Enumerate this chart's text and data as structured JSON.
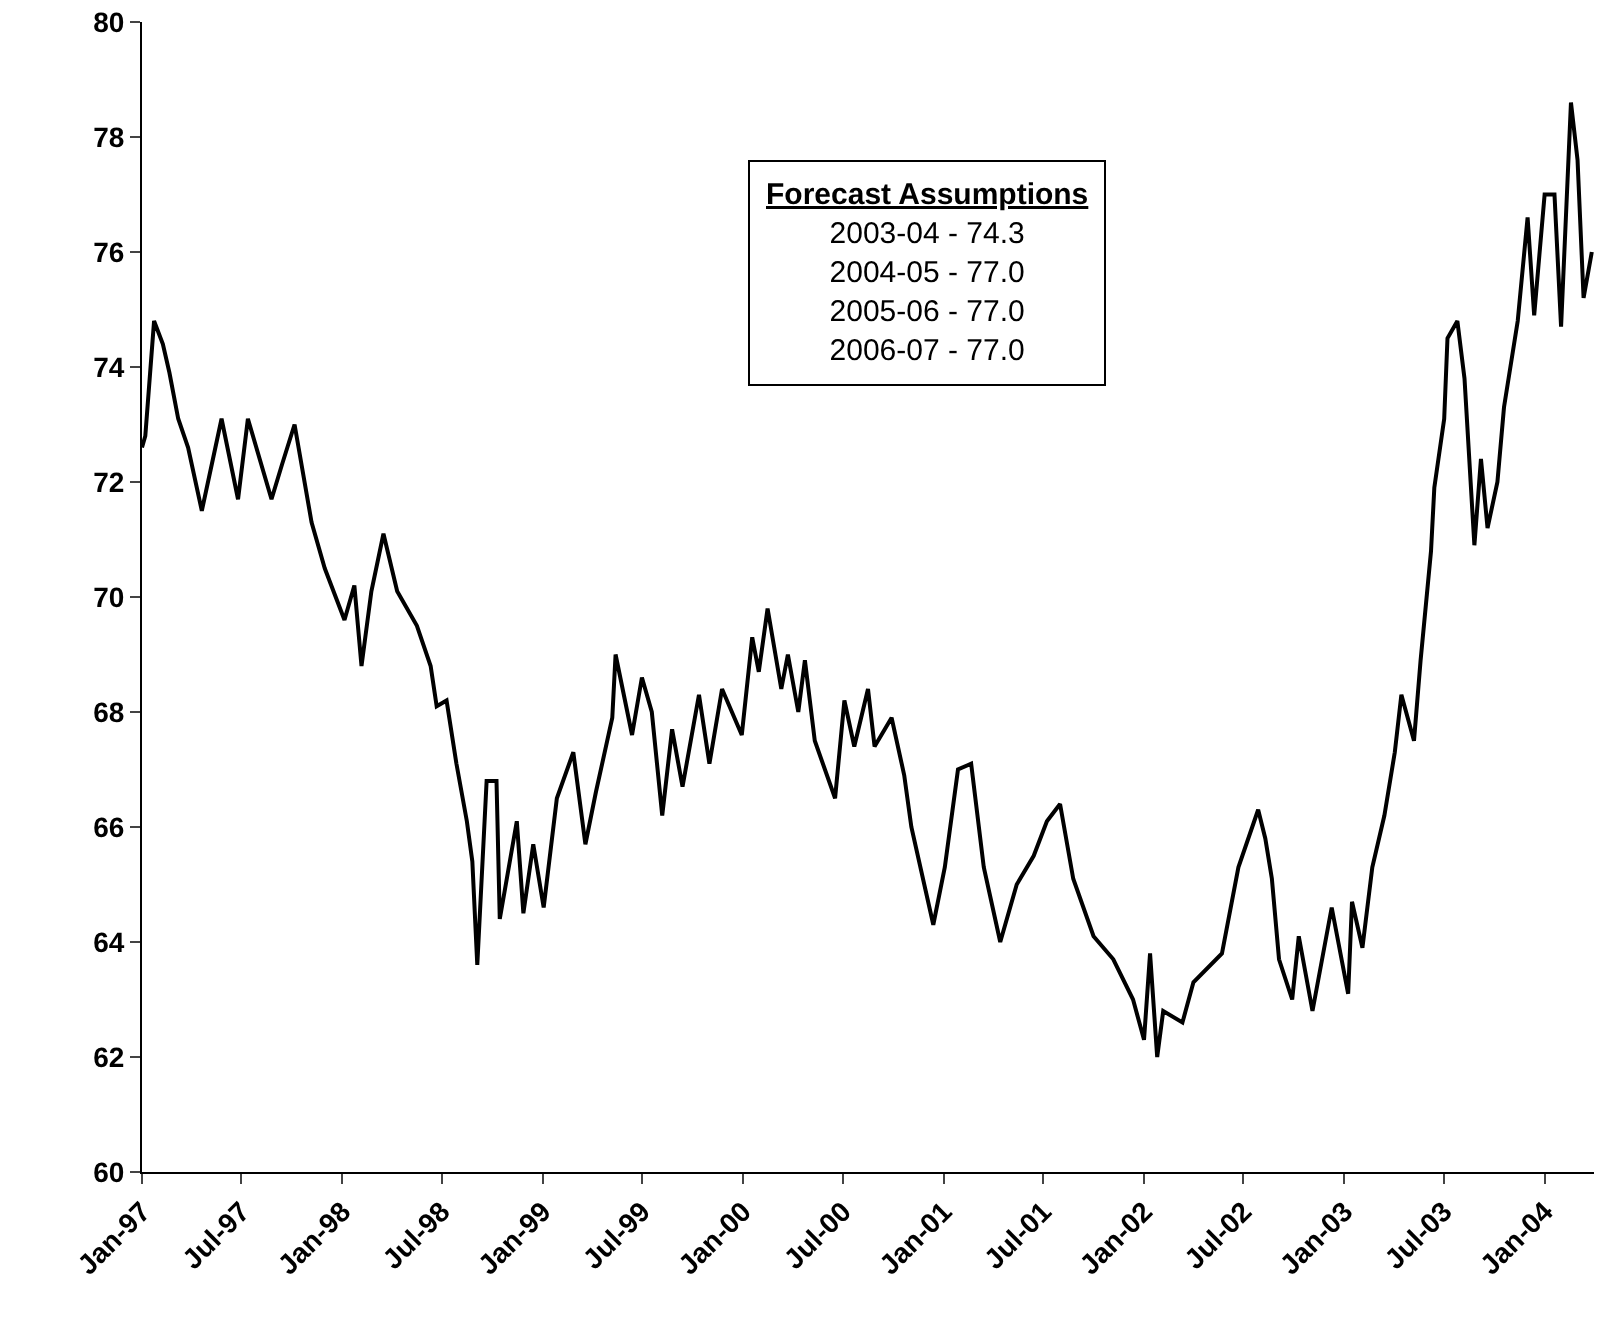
{
  "chart_data": {
    "type": "line",
    "color": "#000000",
    "annotations": [
      "Forecast Assumptions",
      "2003-04 - 74.3",
      "2004-05 - 77.0",
      "2005-06 - 77.0",
      "2006-07 - 77.0"
    ],
    "x": [
      "1997-01-01",
      "1997-01-07",
      "1997-01-23",
      "1997-02-08",
      "1997-02-20",
      "1997-03-08",
      "1997-03-26",
      "1997-04-20",
      "1997-05-08",
      "1997-05-26",
      "1997-06-25",
      "1997-07-13",
      "1997-08-25",
      "1997-09-13",
      "1997-10-06",
      "1997-11-06",
      "1997-11-30",
      "1998-01-05",
      "1998-01-23",
      "1998-02-05",
      "1998-02-23",
      "1998-03-17",
      "1998-04-11",
      "1998-05-17",
      "1998-06-11",
      "1998-06-22",
      "1998-07-10",
      "1998-07-28",
      "1998-08-16",
      "1998-08-26",
      "1998-09-04",
      "1998-09-21",
      "1998-10-09",
      "1998-10-15",
      "1998-11-15",
      "1998-11-27",
      "1998-12-15",
      "1999-01-03",
      "1999-01-27",
      "1999-02-26",
      "1999-03-20",
      "1999-04-08",
      "1999-05-08",
      "1999-05-14",
      "1999-06-13",
      "1999-07-01",
      "1999-07-19",
      "1999-08-07",
      "1999-08-25",
      "1999-09-13",
      "1999-10-13",
      "1999-11-01",
      "1999-11-24",
      "1999-12-30",
      "2000-01-18",
      "2000-01-30",
      "2000-02-15",
      "2000-03-11",
      "2000-03-23",
      "2000-04-11",
      "2000-04-23",
      "2000-05-11",
      "2000-06-17",
      "2000-07-04",
      "2000-07-22",
      "2000-08-16",
      "2000-08-28",
      "2000-09-28",
      "2000-10-21",
      "2000-11-03",
      "2000-12-13",
      "2001-01-03",
      "2001-01-27",
      "2001-02-20",
      "2001-03-15",
      "2001-04-14",
      "2001-05-14",
      "2001-06-14",
      "2001-07-08",
      "2001-08-01",
      "2001-08-25",
      "2001-10-01",
      "2001-11-06",
      "2001-12-12",
      "2002-01-01",
      "2002-01-12",
      "2002-01-25",
      "2002-02-05",
      "2002-03-12",
      "2002-04-01",
      "2002-05-23",
      "2002-06-22",
      "2002-07-28",
      "2002-08-10",
      "2002-08-22",
      "2002-09-04",
      "2002-09-28",
      "2002-10-10",
      "2002-11-04",
      "2002-12-09",
      "2003-01-08",
      "2003-01-15",
      "2003-02-03",
      "2003-02-21",
      "2003-03-15",
      "2003-04-03",
      "2003-04-15",
      "2003-05-08",
      "2003-05-20",
      "2003-06-08",
      "2003-06-14",
      "2003-07-02",
      "2003-07-08",
      "2003-07-26",
      "2003-08-08",
      "2003-08-26",
      "2003-09-07",
      "2003-09-19",
      "2003-10-07",
      "2003-10-19",
      "2003-11-13",
      "2003-12-01",
      "2003-12-13",
      "2004-01-01",
      "2004-01-19",
      "2004-01-31",
      "2004-02-18",
      "2004-03-01",
      "2004-03-12",
      "2004-03-27"
    ],
    "values": [
      72.6,
      72.8,
      74.8,
      74.4,
      73.9,
      73.1,
      72.6,
      71.5,
      72.3,
      73.1,
      71.7,
      73.1,
      71.7,
      72.3,
      73.0,
      71.3,
      70.5,
      69.6,
      70.2,
      68.8,
      70.1,
      71.1,
      70.1,
      69.5,
      68.8,
      68.1,
      68.2,
      67.1,
      66.1,
      65.4,
      63.6,
      66.8,
      66.8,
      64.4,
      66.1,
      64.5,
      65.7,
      64.6,
      66.5,
      67.3,
      65.7,
      66.6,
      67.9,
      69.0,
      67.6,
      68.6,
      68.0,
      66.2,
      67.7,
      66.7,
      68.3,
      67.1,
      68.4,
      67.6,
      69.3,
      68.7,
      69.8,
      68.4,
      69.0,
      68.0,
      68.9,
      67.5,
      66.5,
      68.2,
      67.4,
      68.4,
      67.4,
      67.9,
      66.9,
      66.0,
      64.3,
      65.3,
      67.0,
      67.1,
      65.3,
      64.0,
      65.0,
      65.5,
      66.1,
      66.4,
      65.1,
      64.1,
      63.7,
      63.0,
      62.3,
      63.8,
      62.0,
      62.8,
      62.6,
      63.3,
      63.8,
      65.3,
      66.3,
      65.8,
      65.1,
      63.7,
      63.0,
      64.1,
      62.8,
      64.6,
      63.1,
      64.7,
      63.9,
      65.3,
      66.2,
      67.3,
      68.3,
      67.5,
      68.9,
      70.8,
      71.9,
      73.1,
      74.5,
      74.8,
      73.8,
      70.9,
      72.4,
      71.2,
      72.0,
      73.3,
      74.8,
      76.6,
      74.9,
      77.0,
      77.0,
      74.7,
      78.6,
      77.6,
      75.2,
      76.0
    ],
    "xlim": [
      "1997-01-01",
      "2004-03-31"
    ],
    "xticks": [
      {
        "value": "1997-01-01",
        "label": "Jan-97"
      },
      {
        "value": "1997-07-01",
        "label": "Jul-97"
      },
      {
        "value": "1998-01-01",
        "label": "Jan-98"
      },
      {
        "value": "1998-07-01",
        "label": "Jul-98"
      },
      {
        "value": "1999-01-01",
        "label": "Jan-99"
      },
      {
        "value": "1999-07-01",
        "label": "Jul-99"
      },
      {
        "value": "2000-01-01",
        "label": "Jan-00"
      },
      {
        "value": "2000-07-01",
        "label": "Jul-00"
      },
      {
        "value": "2001-01-01",
        "label": "Jan-01"
      },
      {
        "value": "2001-07-01",
        "label": "Jul-01"
      },
      {
        "value": "2002-01-01",
        "label": "Jan-02"
      },
      {
        "value": "2002-07-01",
        "label": "Jul-02"
      },
      {
        "value": "2003-01-01",
        "label": "Jan-03"
      },
      {
        "value": "2003-07-01",
        "label": "Jul-03"
      },
      {
        "value": "2004-01-01",
        "label": "Jan-04"
      }
    ],
    "ylim": [
      60,
      80
    ],
    "yticks": [
      60,
      62,
      64,
      66,
      68,
      70,
      72,
      74,
      76,
      78,
      80
    ],
    "marker": "none",
    "line_style": "solid"
  }
}
